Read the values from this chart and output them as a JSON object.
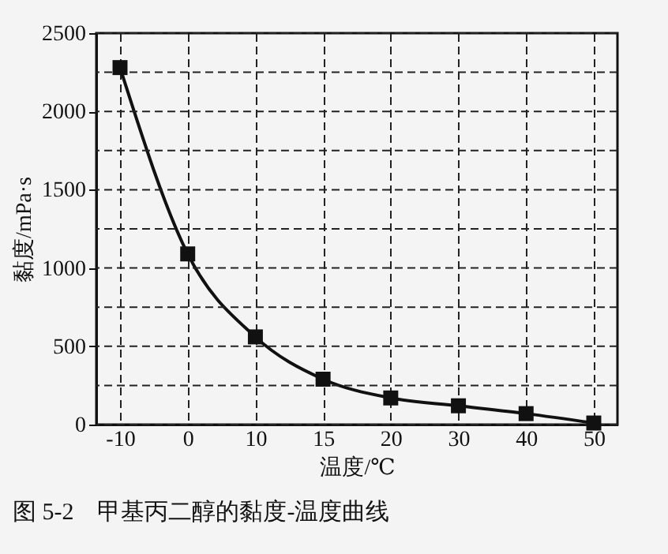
{
  "chart_data": {
    "type": "line",
    "title": "图 5-2　甲基丙二醇的黏度-温度曲线",
    "xlabel": "温度/℃",
    "ylabel": "黏度/mPa·s",
    "categories": [
      "-10",
      "0",
      "10",
      "15",
      "20",
      "30",
      "40",
      "50"
    ],
    "series": [
      {
        "color": "#111111",
        "values": [
          2280,
          1090,
          560,
          290,
          170,
          120,
          70,
          10
        ]
      }
    ],
    "ylim": [
      0,
      2500
    ],
    "yticks": [
      0,
      {
        "value": 250,
        "label": null
      },
      500,
      {
        "value": 750,
        "label": null
      },
      1000,
      {
        "value": 1250,
        "label": null
      },
      1500,
      {
        "value": 1750,
        "label": null
      },
      2000,
      {
        "value": 2250,
        "label": null
      },
      2500
    ],
    "grid": true,
    "marker": "square",
    "line_style": "solid",
    "legend": false
  }
}
